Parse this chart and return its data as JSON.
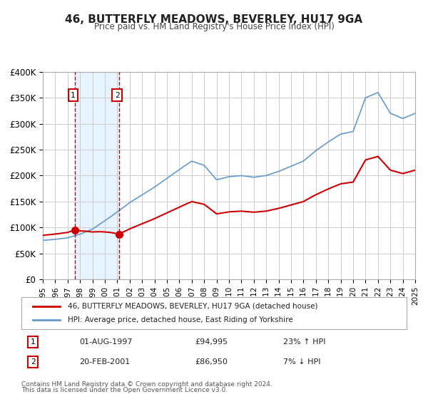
{
  "title": "46, BUTTERFLY MEADOWS, BEVERLEY, HU17 9GA",
  "subtitle": "Price paid vs. HM Land Registry's House Price Index (HPI)",
  "legend_line1": "46, BUTTERFLY MEADOWS, BEVERLEY, HU17 9GA (detached house)",
  "legend_line2": "HPI: Average price, detached house, East Riding of Yorkshire",
  "footer1": "Contains HM Land Registry data © Crown copyright and database right 2024.",
  "footer2": "This data is licensed under the Open Government Licence v3.0.",
  "sale1_label": "1",
  "sale1_date": "01-AUG-1997",
  "sale1_price": "£94,995",
  "sale1_hpi": "23% ↑ HPI",
  "sale1_year": 1997.583,
  "sale1_value": 94995,
  "sale2_label": "2",
  "sale2_date": "20-FEB-2001",
  "sale2_price": "£86,950",
  "sale2_hpi": "7% ↓ HPI",
  "sale2_year": 2001.13,
  "sale2_value": 86950,
  "shaded_region_start": 1997.583,
  "shaded_region_end": 2001.13,
  "property_color": "#cc0000",
  "hpi_color": "#6699cc",
  "background_color": "#ffffff",
  "plot_bg_color": "#ffffff",
  "grid_color": "#cccccc",
  "ylim_min": 0,
  "ylim_max": 400000,
  "xlim_min": 1995,
  "xlim_max": 2025,
  "yticks": [
    0,
    50000,
    100000,
    150000,
    200000,
    250000,
    300000,
    350000,
    400000
  ],
  "ytick_labels": [
    "£0",
    "£50K",
    "£100K",
    "£150K",
    "£200K",
    "£250K",
    "£300K",
    "£350K",
    "£400K"
  ],
  "xtick_years": [
    1995,
    1996,
    1997,
    1998,
    1999,
    2000,
    2001,
    2002,
    2003,
    2004,
    2005,
    2006,
    2007,
    2008,
    2009,
    2010,
    2011,
    2012,
    2013,
    2014,
    2015,
    2016,
    2017,
    2018,
    2019,
    2020,
    2021,
    2022,
    2023,
    2024,
    2025
  ]
}
